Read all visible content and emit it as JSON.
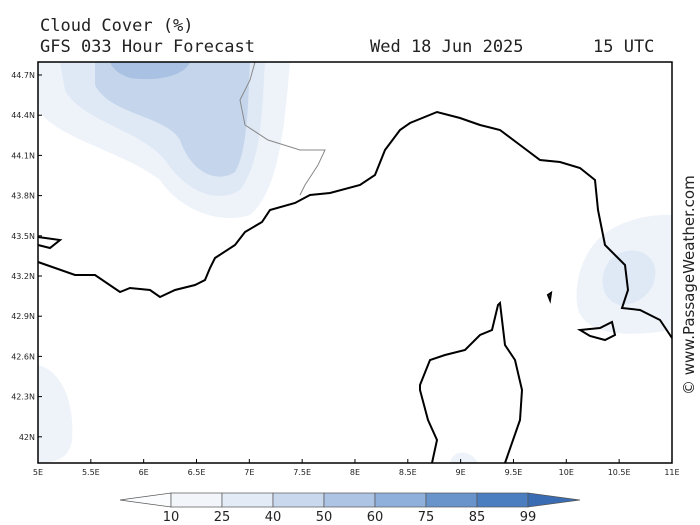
{
  "header": {
    "title": "Cloud Cover (%)",
    "forecast": "GFS 033 Hour Forecast",
    "date": "Wed 18 Jun 2025",
    "time": "15 UTC"
  },
  "axes": {
    "lat": [
      "44.7N",
      "44.4N",
      "44.1N",
      "43.8N",
      "43.5N",
      "43.2N",
      "42.9N",
      "42.6N",
      "42.3N",
      "42N"
    ],
    "lon": [
      "5E",
      "5.5E",
      "6E",
      "6.5E",
      "7E",
      "7.5E",
      "8E",
      "8.5E",
      "9E",
      "9.5E",
      "10E",
      "10.5E",
      "11E"
    ]
  },
  "colorbar": {
    "levels": [
      10,
      25,
      40,
      50,
      60,
      75,
      85,
      99
    ]
  },
  "watermark": "© www.PassageWeather.com"
}
